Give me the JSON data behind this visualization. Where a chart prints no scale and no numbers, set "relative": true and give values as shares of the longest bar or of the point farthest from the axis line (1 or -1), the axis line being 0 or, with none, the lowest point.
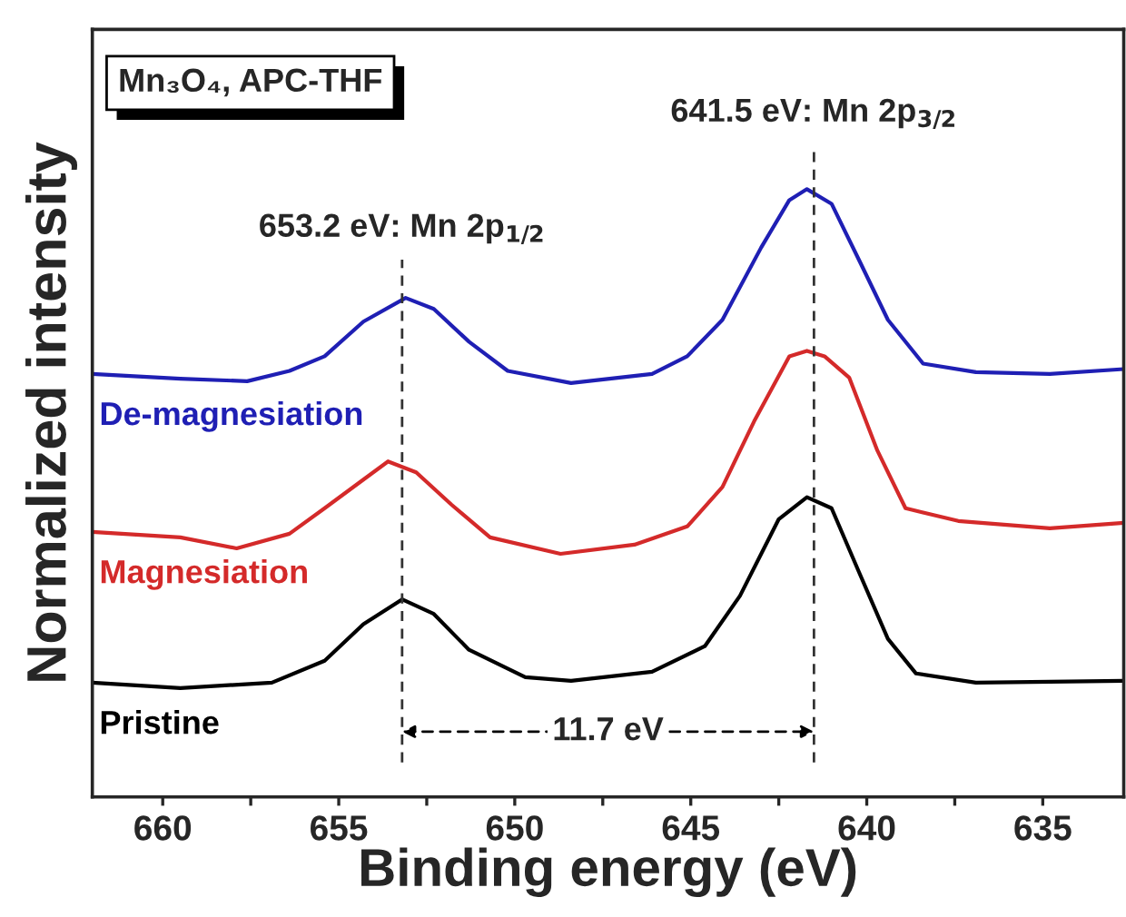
{
  "chart_data": {
    "type": "line",
    "relative": true,
    "xlabel": "Binding energy (eV)",
    "ylabel": "Normalized intensity",
    "xlim": [
      662,
      632.7
    ],
    "xticks": [
      660,
      {
        "value": 657.5,
        "label": null
      },
      655,
      {
        "value": 652.5,
        "label": null
      },
      650,
      {
        "value": 647.5,
        "label": null
      },
      645,
      {
        "value": 642.5,
        "label": null
      },
      640,
      {
        "value": 637.5,
        "label": null
      },
      635
    ],
    "tick_labels": "x",
    "grid": false,
    "legend": false,
    "line_style": "solid",
    "marker": "none",
    "series": [
      {
        "name": "De-magnesiation",
        "color": "#1f1fb4",
        "x": [
          662.0,
          659.5,
          657.6,
          656.4,
          655.4,
          654.3,
          653.1,
          652.3,
          651.3,
          650.2,
          648.4,
          646.1,
          645.1,
          644.1,
          643.0,
          642.2,
          641.7,
          641.0,
          640.2,
          639.4,
          638.4,
          636.9,
          634.8,
          632.7
        ],
        "values": [
          0.696,
          0.688,
          0.684,
          0.701,
          0.725,
          0.782,
          0.821,
          0.803,
          0.749,
          0.701,
          0.681,
          0.696,
          0.725,
          0.785,
          0.904,
          0.982,
          1.0,
          0.976,
          0.881,
          0.785,
          0.713,
          0.699,
          0.696,
          0.704
        ]
      },
      {
        "name": "Magnesiation",
        "color": "#d42a2a",
        "x": [
          662.0,
          659.5,
          657.9,
          656.4,
          655.4,
          654.3,
          653.6,
          652.8,
          651.8,
          650.7,
          648.7,
          646.6,
          645.1,
          644.1,
          643.2,
          642.2,
          641.7,
          641.2,
          640.5,
          639.7,
          638.9,
          637.4,
          634.8,
          632.7
        ],
        "values": [
          0.436,
          0.427,
          0.409,
          0.433,
          0.475,
          0.522,
          0.552,
          0.534,
          0.481,
          0.427,
          0.4,
          0.415,
          0.445,
          0.51,
          0.618,
          0.725,
          0.734,
          0.725,
          0.69,
          0.57,
          0.475,
          0.454,
          0.442,
          0.451
        ]
      },
      {
        "name": "Pristine",
        "color": "#000000",
        "x": [
          662.0,
          659.5,
          656.9,
          655.4,
          654.3,
          653.2,
          652.3,
          651.3,
          649.7,
          648.4,
          646.1,
          644.6,
          643.6,
          642.5,
          641.7,
          641.0,
          640.2,
          639.4,
          638.6,
          636.9,
          632.7
        ],
        "values": [
          0.188,
          0.179,
          0.188,
          0.224,
          0.284,
          0.325,
          0.301,
          0.242,
          0.197,
          0.191,
          0.206,
          0.248,
          0.331,
          0.457,
          0.493,
          0.475,
          0.367,
          0.26,
          0.203,
          0.188,
          0.191
        ]
      }
    ],
    "ref_lines": [
      {
        "axis": "x",
        "value": 653.2,
        "label": "653.2 eV: Mn 2p$_{1/2}$",
        "color": "#333333",
        "line_style": "dashed"
      },
      {
        "axis": "x",
        "value": 641.5,
        "label": "641.5 eV: Mn 2p$_{3/2}$",
        "color": "#333333",
        "line_style": "dashed"
      }
    ],
    "annotations": [
      "Mn₃O₄, APC-THF",
      "11.7 eV"
    ]
  }
}
